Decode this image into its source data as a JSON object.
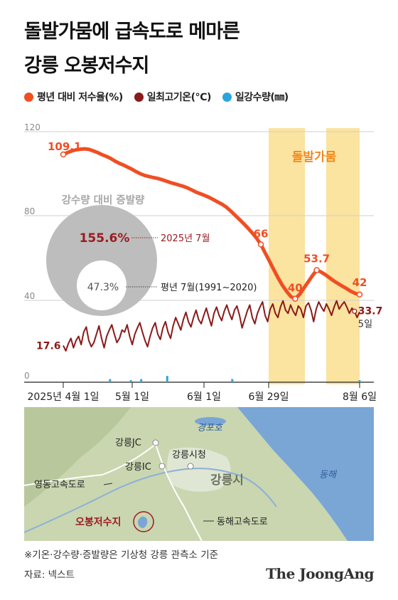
{
  "title_lines": [
    "돌발가뭄에 급속도로 메마른",
    "강릉 오봉저수지"
  ],
  "legend": [
    {
      "label": "평년 대비 저수율(%)",
      "color": "#f04e23"
    },
    {
      "label": "일최고기온(℃)",
      "color": "#8b1a1a"
    },
    {
      "label": "일강수량(㎜)",
      "color": "#2aa6dc"
    }
  ],
  "chart_data": {
    "type": "line",
    "y_ticks": [
      "120",
      "80",
      "40",
      "0"
    ],
    "ylim": [
      0,
      120
    ],
    "x_tick_labels": [
      "2025년 4월 1일",
      "5월 1일",
      "6월 1일",
      "6월 29일",
      "8월 6일"
    ],
    "drought_label": "돌발가뭄",
    "series": [
      {
        "name": "평년 대비 저수율(%)",
        "color": "#f04e23",
        "values": [
          109.1,
          110,
          110.8,
          111.3,
          111.6,
          111.8,
          111.5,
          110.8,
          110,
          109,
          108.2,
          107.2,
          106,
          104.9,
          104,
          103,
          102,
          100.8,
          99.8,
          99,
          98.5,
          98,
          97.6,
          97,
          96.3,
          95.6,
          95,
          94.4,
          93.8,
          93,
          92,
          91,
          90.2,
          89.4,
          88.5,
          87.4,
          86.3,
          85.2,
          83.8,
          82,
          80,
          78,
          76,
          73.8,
          71.5,
          69,
          66,
          62,
          58,
          54,
          50,
          46.5,
          43.5,
          41,
          40,
          42,
          45,
          48,
          51,
          53.7,
          52.8,
          51.5,
          50,
          48.5,
          47.2,
          46,
          44.8,
          43.5,
          42.5,
          42
        ],
        "labels": [
          {
            "index": 0,
            "text": "109.1"
          },
          {
            "index": 46,
            "text": "66"
          },
          {
            "index": 54,
            "text": "40"
          },
          {
            "index": 59,
            "text": "53.7"
          },
          {
            "index": 69,
            "text": "42"
          }
        ]
      },
      {
        "name": "일최고기온(℃)",
        "color": "#8b1a1a",
        "values": [
          17.6,
          15,
          18.5,
          21,
          16.5,
          20,
          22,
          18,
          24,
          26.5,
          20,
          17,
          19,
          23,
          27,
          21,
          16.5,
          22,
          25,
          27.5,
          23,
          19,
          21,
          25,
          24,
          27.5,
          22,
          18,
          23,
          26,
          28.5,
          24,
          20,
          17,
          22,
          26,
          28.5,
          23,
          20.5,
          26,
          29,
          24,
          21,
          27,
          31,
          28,
          25,
          30,
          33.5,
          29,
          26.5,
          31,
          34.5,
          30,
          28,
          32,
          35.5,
          31,
          27,
          33,
          36,
          32,
          29.5,
          34,
          37,
          33,
          30,
          34.5,
          36.5,
          32,
          26,
          30,
          34,
          37,
          31,
          28,
          33,
          36,
          38.5,
          32,
          29,
          35,
          37.5,
          33,
          31,
          36,
          39,
          34.5,
          33,
          37,
          34,
          32,
          36.5,
          35,
          31,
          36.5,
          38,
          34.5,
          29,
          35,
          38.5,
          36,
          34,
          37.5,
          35,
          32,
          36,
          39,
          35,
          37,
          38.5,
          36,
          33,
          35.5,
          34,
          31,
          33.7
        ],
        "labels": [
          {
            "index": 0,
            "text": "17.6"
          },
          {
            "index": 114,
            "text": "33.7"
          }
        ],
        "end_date_label": "5일"
      },
      {
        "name": "일강수량(㎜)",
        "color": "#2aa6dc",
        "values": [
          0,
          0,
          0,
          0,
          0,
          0,
          0,
          0,
          0,
          0,
          0,
          0,
          0,
          0,
          0,
          0,
          0,
          0,
          1.5,
          0,
          0,
          0,
          0,
          0,
          0,
          0,
          1,
          0,
          0,
          0,
          1.5,
          0,
          0,
          0,
          0,
          0,
          0,
          0,
          0,
          0,
          3,
          0,
          0,
          0,
          0,
          0,
          0,
          0,
          0,
          0,
          0,
          0,
          0,
          0,
          0,
          0,
          0,
          0,
          0,
          0,
          0,
          0,
          0,
          0,
          0,
          1.5,
          0,
          0,
          0,
          0,
          0,
          0,
          0,
          0,
          0,
          0,
          0,
          0,
          0,
          0,
          0,
          0,
          0,
          0,
          0,
          0,
          0,
          0,
          0,
          0,
          0,
          0,
          0,
          0,
          0,
          0,
          0,
          0,
          0,
          0,
          0,
          0,
          0,
          0,
          0,
          0,
          0,
          0,
          0,
          0,
          0,
          0,
          0,
          0,
          1
        ]
      }
    ],
    "inset": {
      "title": "강수량 대비 증발량",
      "outer_value": "155.6%",
      "outer_label": "2025년 7월",
      "inner_value": "47.3%",
      "inner_label": "평년 7월(1991~2020)"
    }
  },
  "map": {
    "labels": {
      "gyeongpoho": "경포호",
      "donghae": "동해",
      "gangneung_jc": "강릉JC",
      "gangneung_cityhall": "강릉시청",
      "gangneung_ic": "강릉IC",
      "gangneung_si": "강릉시",
      "yeongdong_expressway": "영동고속도로",
      "obong_reservoir": "오봉저수지",
      "donghae_expressway": "동해고속도로"
    }
  },
  "footer": {
    "note": "※기온·강수량·증발량은 기상청 강릉 관측소 기준",
    "source": "자료: 넥스트",
    "brand": "The JoongAng"
  }
}
